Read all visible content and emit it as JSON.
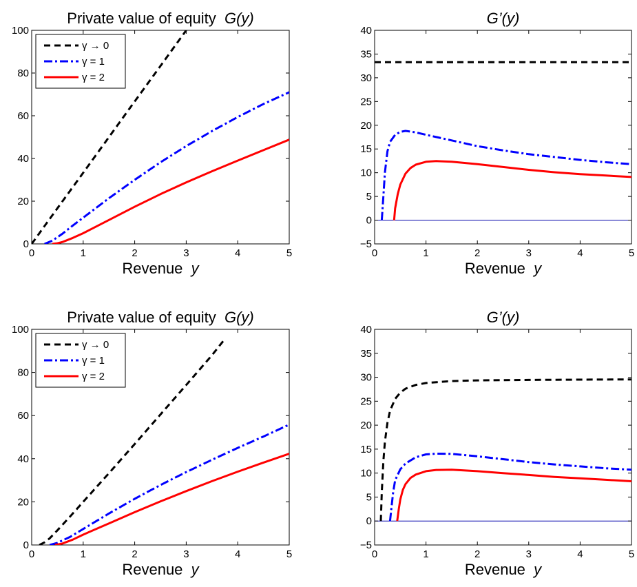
{
  "chart_data": [
    {
      "type": "line",
      "title_text": "Private value of equity",
      "title_func": "G(y)",
      "xlabel_text": "Revenue",
      "xlabel_var": "y",
      "xlim": [
        0,
        5
      ],
      "ylim": [
        0,
        100
      ],
      "xticks": [
        "0",
        "1",
        "2",
        "3",
        "4",
        "5"
      ],
      "yticks": [
        "0",
        "20",
        "40",
        "60",
        "80",
        "100"
      ],
      "legend": {
        "placement": "top-left",
        "entries": [
          "γ → 0",
          "γ = 1",
          "γ = 2"
        ]
      },
      "zero_line": false,
      "series": [
        {
          "name": "γ → 0",
          "color": "#000000",
          "dash": "dashed",
          "x": [
            0,
            0.5,
            1,
            1.5,
            2,
            2.5,
            3.0
          ],
          "y": [
            0,
            16.7,
            33.3,
            50.0,
            66.7,
            83.3,
            100
          ]
        },
        {
          "name": "γ = 1",
          "color": "#0000ff",
          "dash": "dashdot",
          "x": [
            0.25,
            0.4,
            0.6,
            0.8,
            1,
            1.5,
            2,
            2.5,
            3,
            3.5,
            4,
            4.5,
            5
          ],
          "y": [
            0,
            1.5,
            4.8,
            8.6,
            12.3,
            21.4,
            30.0,
            38.2,
            45.8,
            52.8,
            59.4,
            65.5,
            71.0
          ]
        },
        {
          "name": "γ = 2",
          "color": "#ff0000",
          "dash": "solid",
          "x": [
            0.4,
            0.5,
            0.6,
            0.8,
            1,
            1.5,
            2,
            2.5,
            3,
            3.5,
            4,
            4.5,
            5
          ],
          "y": [
            0,
            0.3,
            0.9,
            2.8,
            5.0,
            11.2,
            17.4,
            23.3,
            28.8,
            34.0,
            39.0,
            43.9,
            48.8
          ]
        }
      ]
    },
    {
      "type": "line",
      "title_text": "",
      "title_func": "G’(y)",
      "xlabel_text": "Revenue",
      "xlabel_var": "y",
      "xlim": [
        0,
        5
      ],
      "ylim": [
        -5,
        40
      ],
      "xticks": [
        "0",
        "1",
        "2",
        "3",
        "4",
        "5"
      ],
      "yticks": [
        "−5",
        "0",
        "5",
        "10",
        "15",
        "20",
        "25",
        "30",
        "35",
        "40"
      ],
      "legend": null,
      "zero_line": true,
      "series": [
        {
          "name": "γ → 0",
          "color": "#000000",
          "dash": "dashed",
          "x": [
            0,
            5
          ],
          "y": [
            33.3,
            33.3
          ]
        },
        {
          "name": "γ = 1",
          "color": "#0000ff",
          "dash": "dashdot",
          "x": [
            0.14,
            0.17,
            0.2,
            0.25,
            0.3,
            0.4,
            0.5,
            0.6,
            0.8,
            1,
            1.5,
            2,
            2.5,
            3,
            3.5,
            4,
            4.5,
            5
          ],
          "y": [
            0,
            5,
            10,
            14.5,
            16.5,
            18.0,
            18.6,
            18.8,
            18.5,
            18.0,
            16.8,
            15.6,
            14.7,
            13.9,
            13.3,
            12.7,
            12.2,
            11.8
          ]
        },
        {
          "name": "γ = 2",
          "color": "#ff0000",
          "dash": "solid",
          "x": [
            0.38,
            0.4,
            0.45,
            0.5,
            0.6,
            0.7,
            0.8,
            1,
            1.2,
            1.5,
            2,
            2.5,
            3,
            3.5,
            4,
            4.5,
            5
          ],
          "y": [
            0,
            2.5,
            5.5,
            7.5,
            9.8,
            11.0,
            11.7,
            12.3,
            12.45,
            12.3,
            11.8,
            11.2,
            10.6,
            10.1,
            9.7,
            9.4,
            9.1
          ]
        }
      ]
    },
    {
      "type": "line",
      "title_text": "Private value of equity",
      "title_func": "G(y)",
      "xlabel_text": "Revenue",
      "xlabel_var": "y",
      "xlim": [
        0,
        5
      ],
      "ylim": [
        0,
        100
      ],
      "xticks": [
        "0",
        "1",
        "2",
        "3",
        "4",
        "5"
      ],
      "yticks": [
        "0",
        "20",
        "40",
        "60",
        "80",
        "100"
      ],
      "legend": {
        "placement": "top-left",
        "entries": [
          "γ → 0",
          "γ = 1",
          "γ = 2"
        ]
      },
      "zero_line": false,
      "series": [
        {
          "name": "γ → 0",
          "color": "#000000",
          "dash": "dashed",
          "x": [
            0.15,
            0.25,
            0.35,
            0.5,
            0.75,
            1,
            1.5,
            2,
            2.5,
            3,
            3.5,
            3.75
          ],
          "y": [
            0,
            1.2,
            3.1,
            6.8,
            13.3,
            20.0,
            33.3,
            46.8,
            60.5,
            74.2,
            88.0,
            95.5
          ]
        },
        {
          "name": "γ = 1",
          "color": "#0000ff",
          "dash": "dashdot",
          "x": [
            0.35,
            0.5,
            0.75,
            1,
            1.5,
            2,
            2.5,
            3,
            3.5,
            4,
            4.5,
            5
          ],
          "y": [
            0,
            1.0,
            3.8,
            7.4,
            14.6,
            21.4,
            27.8,
            33.8,
            39.5,
            45.0,
            50.3,
            55.8
          ]
        },
        {
          "name": "γ = 2",
          "color": "#ff0000",
          "dash": "solid",
          "x": [
            0.45,
            0.6,
            0.8,
            1,
            1.5,
            2,
            2.5,
            3,
            3.5,
            4,
            4.5,
            5
          ],
          "y": [
            0,
            0.7,
            2.5,
            4.8,
            10.0,
            15.2,
            20.2,
            25.0,
            29.6,
            34.0,
            38.2,
            42.3
          ]
        }
      ]
    },
    {
      "type": "line",
      "title_text": "",
      "title_func": "G’(y)",
      "xlabel_text": "Revenue",
      "xlabel_var": "y",
      "xlim": [
        0,
        5
      ],
      "ylim": [
        -5,
        40
      ],
      "xticks": [
        "0",
        "1",
        "2",
        "3",
        "4",
        "5"
      ],
      "yticks": [
        "−5",
        "0",
        "5",
        "10",
        "15",
        "20",
        "25",
        "30",
        "35",
        "40"
      ],
      "legend": null,
      "zero_line": true,
      "series": [
        {
          "name": "γ → 0",
          "color": "#000000",
          "dash": "dashed",
          "x": [
            0.12,
            0.14,
            0.17,
            0.2,
            0.25,
            0.3,
            0.4,
            0.5,
            0.6,
            0.8,
            1,
            1.5,
            2,
            2.5,
            3,
            4,
            5
          ],
          "y": [
            0,
            6,
            12.5,
            16.5,
            20.5,
            23.0,
            25.5,
            26.8,
            27.6,
            28.4,
            28.8,
            29.2,
            29.35,
            29.4,
            29.45,
            29.5,
            29.55
          ]
        },
        {
          "name": "γ = 1",
          "color": "#0000ff",
          "dash": "dashdot",
          "x": [
            0.3,
            0.33,
            0.36,
            0.4,
            0.5,
            0.6,
            0.8,
            1,
            1.2,
            1.5,
            2,
            2.5,
            3,
            3.5,
            4,
            4.5,
            5
          ],
          "y": [
            0,
            3,
            6,
            8.5,
            10.8,
            12.0,
            13.3,
            13.9,
            14.05,
            14.0,
            13.5,
            12.9,
            12.3,
            11.8,
            11.4,
            11.0,
            10.7
          ]
        },
        {
          "name": "γ = 2",
          "color": "#ff0000",
          "dash": "solid",
          "x": [
            0.44,
            0.47,
            0.5,
            0.55,
            0.6,
            0.7,
            0.8,
            1,
            1.2,
            1.5,
            2,
            2.5,
            3,
            3.5,
            4,
            4.5,
            5
          ],
          "y": [
            0,
            2.5,
            4.5,
            6.5,
            7.7,
            9.0,
            9.7,
            10.4,
            10.65,
            10.7,
            10.4,
            10.0,
            9.6,
            9.2,
            8.9,
            8.6,
            8.3
          ]
        }
      ]
    }
  ]
}
